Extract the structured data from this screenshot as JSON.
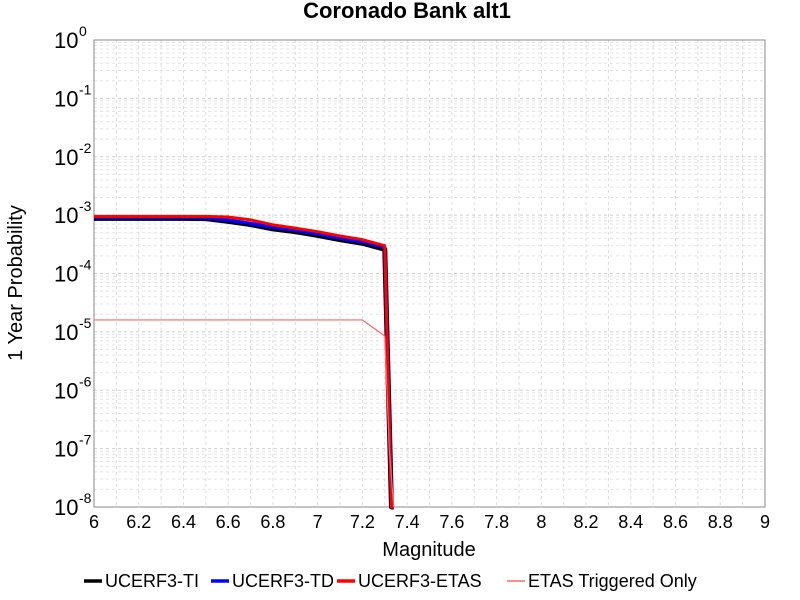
{
  "chart_data": {
    "type": "line",
    "title": "Coronado Bank alt1",
    "xlabel": "Magnitude",
    "ylabel": "1 Year Probability",
    "xlim": [
      6,
      9
    ],
    "ylim": [
      1e-08,
      1
    ],
    "yscale": "log",
    "grid": true,
    "legend_position": "bottom",
    "x_ticks": [
      "6",
      "6.2",
      "6.4",
      "6.6",
      "6.8",
      "7",
      "7.2",
      "7.4",
      "7.6",
      "7.8",
      "8",
      "8.2",
      "8.4",
      "8.6",
      "8.8",
      "9"
    ],
    "y_ticks": [
      {
        "base": "10",
        "exp": "0"
      },
      {
        "base": "10",
        "exp": "-1"
      },
      {
        "base": "10",
        "exp": "-2"
      },
      {
        "base": "10",
        "exp": "-3"
      },
      {
        "base": "10",
        "exp": "-4"
      },
      {
        "base": "10",
        "exp": "-5"
      },
      {
        "base": "10",
        "exp": "-6"
      },
      {
        "base": "10",
        "exp": "-7"
      },
      {
        "base": "10",
        "exp": "-8"
      }
    ],
    "series": [
      {
        "name": "UCERF3-TI",
        "color": "#000000",
        "x": [
          6.0,
          6.1,
          6.2,
          6.3,
          6.4,
          6.5,
          6.6,
          6.7,
          6.8,
          6.9,
          7.0,
          7.1,
          7.2,
          7.3,
          7.33,
          7.34
        ],
        "y": [
          0.00088,
          0.00088,
          0.00088,
          0.00088,
          0.00088,
          0.00087,
          0.00078,
          0.00069,
          0.00058,
          0.00052,
          0.00045,
          0.00038,
          0.00033,
          0.00026,
          1e-08,
          1e-08
        ]
      },
      {
        "name": "UCERF3-TD",
        "color": "#0000ff",
        "x": [
          6.0,
          6.1,
          6.2,
          6.3,
          6.4,
          6.5,
          6.6,
          6.7,
          6.8,
          6.9,
          7.0,
          7.1,
          7.2,
          7.3,
          7.33,
          7.34
        ],
        "y": [
          0.00091,
          0.00091,
          0.00091,
          0.00091,
          0.00091,
          0.0009,
          0.00082,
          0.00072,
          0.00062,
          0.00055,
          0.00048,
          0.0004,
          0.00035,
          0.00028,
          1e-08,
          1e-08
        ]
      },
      {
        "name": "UCERF3-ETAS",
        "color": "#ff0000",
        "x": [
          6.0,
          6.1,
          6.2,
          6.3,
          6.4,
          6.5,
          6.6,
          6.7,
          6.8,
          6.9,
          7.0,
          7.1,
          7.2,
          7.3,
          7.33,
          7.34
        ],
        "y": [
          0.00095,
          0.00095,
          0.00095,
          0.00095,
          0.00095,
          0.00095,
          0.00093,
          0.00083,
          0.00068,
          0.0006,
          0.00052,
          0.00044,
          0.00038,
          0.0003,
          1e-08,
          1e-08
        ]
      },
      {
        "name": "ETAS Triggered Only",
        "color": "#ff6666",
        "x": [
          6.0,
          6.2,
          6.4,
          6.6,
          6.8,
          7.0,
          7.2,
          7.3,
          7.32,
          7.34
        ],
        "y": [
          1.6e-05,
          1.6e-05,
          1.6e-05,
          1.6e-05,
          1.6e-05,
          1.6e-05,
          1.6e-05,
          8.5e-06,
          1e-07,
          1e-08
        ]
      }
    ]
  }
}
